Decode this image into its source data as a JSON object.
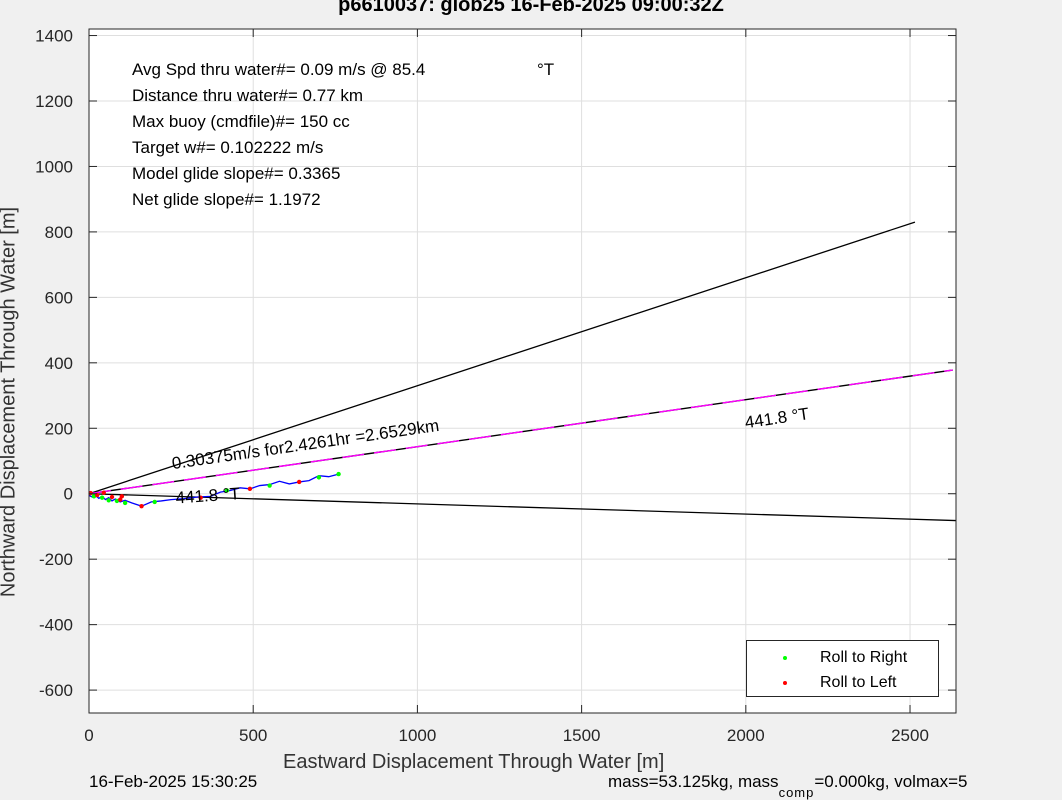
{
  "title": "p6610037: glob25 16-Feb-2025 09:00:32Z",
  "footer": {
    "timestamp": "16-Feb-2025 15:30:25",
    "mass_text_before_sub": "mass=53.125kg, mass",
    "mass_sub": "comp",
    "mass_text_after_sub": "=0.000kg, volmax=5"
  },
  "stats": [
    "Avg Spd thru water#=  0.09 m/s @  85.4",
    "Distance thru water#=  0.77 km",
    "Max buoy (cmdfile)#= 150 cc",
    "Target w#= 0.102222 m/s",
    "Model glide slope#= 0.3365",
    "Net glide slope#= 1.1972"
  ],
  "stats_degree": "°T",
  "legend": [
    {
      "label": "Roll to Right",
      "color": "#00ff00"
    },
    {
      "label": "Roll to Left",
      "color": "#ff0000"
    }
  ],
  "colors": {
    "track": "#0000ff",
    "current_line": "#ff00ff",
    "axes": "#262626",
    "grid": "#dfdfdf",
    "background": "#f0f0f0",
    "plot_area": "#ffffff"
  },
  "chart_data": {
    "type": "line",
    "title": "p6610037: glob25 16-Feb-2025 09:00:32Z",
    "xlabel": "Eastward Displacement Through Water [m]",
    "ylabel": "Northward Displacement Through Water [m]",
    "xlim": [
      0,
      2640
    ],
    "ylim": [
      -670,
      1420
    ],
    "xticks": [
      0,
      500,
      1000,
      1500,
      2000,
      2500
    ],
    "yticks": [
      -600,
      -400,
      -200,
      0,
      200,
      400,
      600,
      800,
      1000,
      1200,
      1400
    ],
    "grid": true,
    "legend_position": "bottom-right",
    "annotations": [
      {
        "text": "0.30375m/s for2.4261hr =2.6529km",
        "x": 255,
        "y": 75,
        "angle_deg": -8.2
      },
      {
        "text": "441.8  °T",
        "x": 2000,
        "y": 200,
        "angle_deg": -8.2
      },
      {
        "text": "441.8  °T",
        "x": 265,
        "y": -30,
        "angle_deg": -4
      }
    ],
    "series": [
      {
        "name": "heading upper bound",
        "color": "#000000",
        "style": "solid",
        "x": [
          0,
          2515
        ],
        "y": [
          0,
          830
        ]
      },
      {
        "name": "heading lower bound",
        "color": "#000000",
        "style": "solid",
        "x": [
          0,
          2640
        ],
        "y": [
          0,
          -82
        ]
      },
      {
        "name": "depth-averaged current",
        "color": "#ff00ff",
        "style": "dashed-black-magenta",
        "x": [
          0,
          2630
        ],
        "y": [
          0,
          378
        ]
      },
      {
        "name": "track",
        "color": "#0000ff",
        "style": "solid",
        "x": [
          0,
          10,
          20,
          30,
          40,
          50,
          60,
          70,
          80,
          95,
          110,
          130,
          160,
          190,
          220,
          250,
          290,
          330,
          370,
          400,
          430,
          460,
          490,
          520,
          550,
          580,
          610,
          640,
          670,
          700,
          730,
          760
        ],
        "y": [
          -5,
          -10,
          -6,
          -14,
          -8,
          -18,
          -12,
          -22,
          -16,
          -25,
          -20,
          -28,
          -38,
          -25,
          -22,
          -18,
          -15,
          -10,
          -8,
          5,
          10,
          18,
          15,
          25,
          28,
          38,
          30,
          36,
          40,
          55,
          52,
          60
        ]
      },
      {
        "name": "Roll to Right",
        "color": "#00ff00",
        "style": "markers",
        "x": [
          15,
          40,
          60,
          85,
          110,
          200,
          420,
          550,
          700,
          760
        ],
        "y": [
          -8,
          -12,
          -20,
          -22,
          -28,
          -25,
          10,
          25,
          50,
          60
        ]
      },
      {
        "name": "Roll to Left",
        "color": "#ff0000",
        "style": "markers",
        "x": [
          5,
          25,
          45,
          70,
          95,
          100,
          160,
          340,
          490,
          640
        ],
        "y": [
          2,
          -4,
          3,
          -10,
          -18,
          -8,
          -38,
          -12,
          15,
          36
        ]
      }
    ]
  }
}
